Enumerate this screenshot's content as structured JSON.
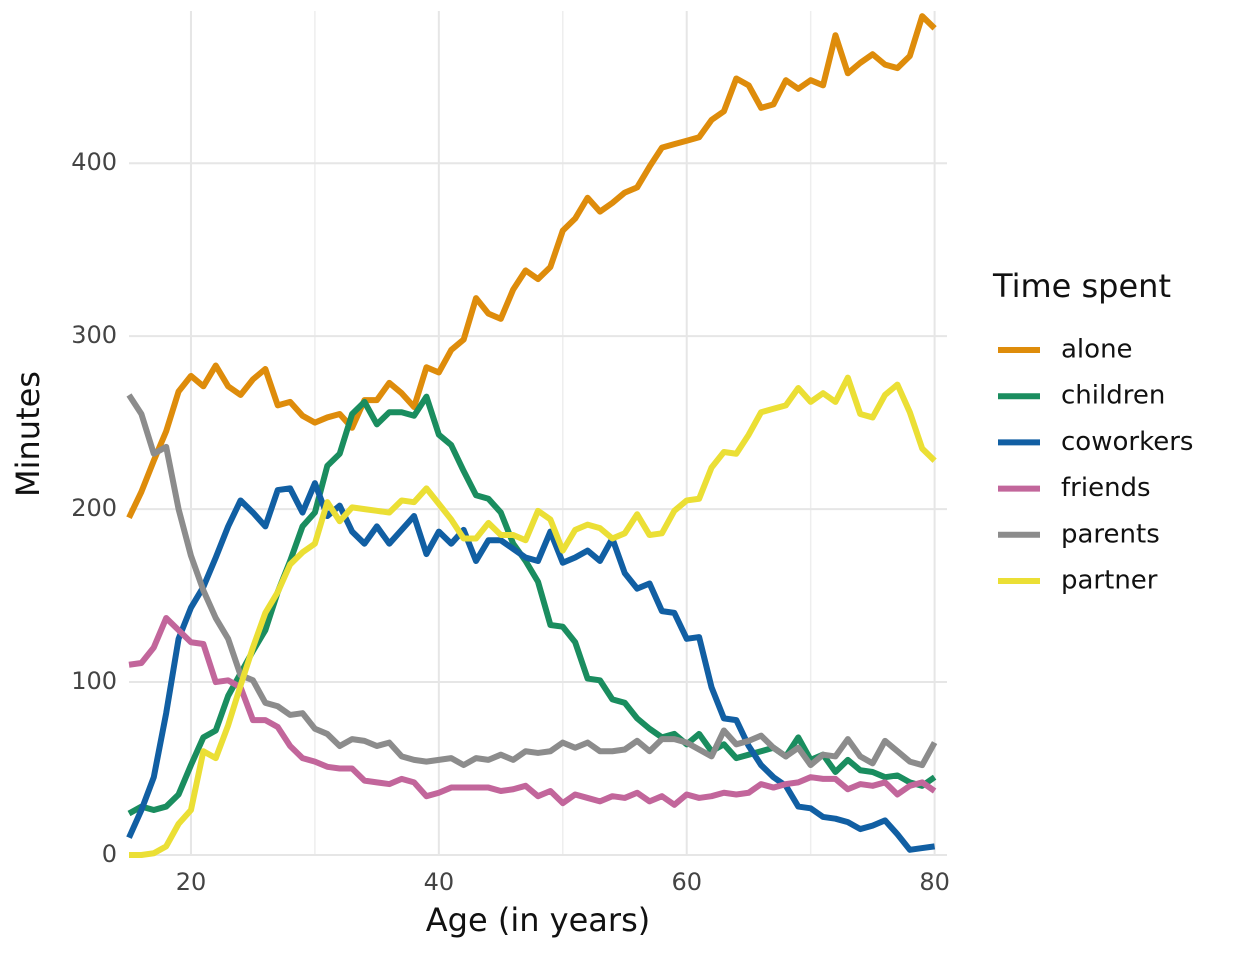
{
  "chart_data": {
    "type": "line",
    "x_label": "Age (in years)",
    "y_label": "Minutes",
    "legend_title": "Time spent",
    "legend_position": "right",
    "grid": true,
    "xlim": [
      15,
      81
    ],
    "ylim": [
      0,
      488
    ],
    "xticks": [
      20,
      40,
      60,
      80
    ],
    "x_minor_ticks": [
      30,
      50,
      70
    ],
    "yticks": [
      0,
      100,
      200,
      300,
      400
    ],
    "x": [
      15,
      16,
      17,
      18,
      19,
      20,
      21,
      22,
      23,
      24,
      25,
      26,
      27,
      28,
      29,
      30,
      31,
      32,
      33,
      34,
      35,
      36,
      37,
      38,
      39,
      40,
      41,
      42,
      43,
      44,
      45,
      46,
      47,
      48,
      49,
      50,
      51,
      52,
      53,
      54,
      55,
      56,
      57,
      58,
      59,
      60,
      61,
      62,
      63,
      64,
      65,
      66,
      67,
      68,
      69,
      70,
      71,
      72,
      73,
      74,
      75,
      76,
      77,
      78,
      79,
      80
    ],
    "series": [
      {
        "name": "alone",
        "color": "#de8c0b",
        "values": [
          195,
          210,
          228,
          245,
          268,
          277,
          271,
          283,
          271,
          266,
          275,
          281,
          260,
          262,
          254,
          250,
          253,
          255,
          247,
          263,
          263,
          273,
          267,
          259,
          282,
          279,
          292,
          298,
          322,
          313,
          310,
          327,
          338,
          333,
          340,
          361,
          368,
          380,
          372,
          377,
          383,
          386,
          398,
          409,
          411,
          413,
          415,
          425,
          430,
          449,
          445,
          432,
          434,
          448,
          443,
          448,
          445,
          474,
          452,
          458,
          463,
          457,
          455,
          462,
          485,
          478
        ]
      },
      {
        "name": "children",
        "color": "#1a8d5f",
        "values": [
          24,
          28,
          26,
          28,
          35,
          52,
          68,
          72,
          92,
          105,
          118,
          130,
          152,
          170,
          190,
          198,
          225,
          232,
          255,
          262,
          249,
          256,
          256,
          254,
          265,
          243,
          237,
          222,
          208,
          206,
          198,
          180,
          170,
          158,
          133,
          132,
          123,
          102,
          101,
          90,
          88,
          79,
          73,
          68,
          70,
          64,
          70,
          60,
          64,
          56,
          58,
          60,
          62,
          57,
          68,
          55,
          58,
          48,
          55,
          49,
          48,
          45,
          46,
          42,
          40,
          45
        ]
      },
      {
        "name": "coworkers",
        "color": "#115fa3",
        "values": [
          10,
          26,
          45,
          82,
          125,
          143,
          155,
          172,
          190,
          205,
          198,
          190,
          211,
          212,
          198,
          215,
          196,
          202,
          187,
          180,
          190,
          180,
          188,
          196,
          174,
          187,
          180,
          188,
          170,
          182,
          182,
          177,
          172,
          170,
          187,
          169,
          172,
          176,
          170,
          183,
          163,
          154,
          157,
          141,
          140,
          125,
          126,
          97,
          79,
          78,
          63,
          52,
          45,
          40,
          28,
          27,
          22,
          21,
          19,
          15,
          17,
          20,
          12,
          3,
          4,
          5
        ]
      },
      {
        "name": "friends",
        "color": "#c2669b",
        "values": [
          110,
          111,
          120,
          137,
          130,
          123,
          122,
          100,
          101,
          97,
          78,
          78,
          74,
          63,
          56,
          54,
          51,
          50,
          50,
          43,
          42,
          41,
          44,
          42,
          34,
          36,
          39,
          39,
          39,
          39,
          37,
          38,
          40,
          34,
          37,
          30,
          35,
          33,
          31,
          34,
          33,
          36,
          31,
          34,
          29,
          35,
          33,
          34,
          36,
          35,
          36,
          41,
          39,
          41,
          42,
          45,
          44,
          44,
          38,
          41,
          40,
          42,
          35,
          40,
          42,
          37
        ]
      },
      {
        "name": "parents",
        "color": "#8c8c8c",
        "values": [
          266,
          255,
          232,
          236,
          200,
          173,
          153,
          137,
          125,
          104,
          101,
          88,
          86,
          81,
          82,
          73,
          70,
          63,
          67,
          66,
          63,
          65,
          57,
          55,
          54,
          55,
          56,
          52,
          56,
          55,
          58,
          55,
          60,
          59,
          60,
          65,
          62,
          65,
          60,
          60,
          61,
          66,
          60,
          67,
          67,
          65,
          61,
          57,
          72,
          64,
          66,
          69,
          62,
          57,
          62,
          52,
          58,
          57,
          67,
          57,
          53,
          66,
          60,
          54,
          52,
          65
        ]
      },
      {
        "name": "partner",
        "color": "#ebdf35",
        "values": [
          0,
          0,
          1,
          5,
          18,
          26,
          60,
          56,
          75,
          98,
          120,
          140,
          152,
          168,
          175,
          180,
          204,
          193,
          201,
          200,
          199,
          198,
          205,
          204,
          212,
          203,
          194,
          183,
          183,
          192,
          185,
          185,
          182,
          199,
          194,
          176,
          188,
          191,
          189,
          183,
          186,
          197,
          185,
          186,
          199,
          205,
          206,
          224,
          233,
          232,
          243,
          256,
          258,
          260,
          270,
          262,
          267,
          262,
          276,
          255,
          253,
          266,
          272,
          256,
          235,
          228
        ]
      }
    ]
  }
}
